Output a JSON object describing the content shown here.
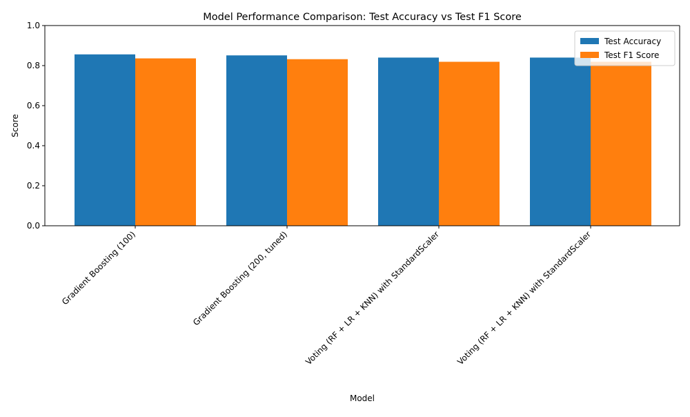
{
  "chart_data": {
    "type": "bar",
    "title": "Model Performance Comparison: Test Accuracy vs Test F1 Score",
    "xlabel": "Model",
    "ylabel": "Score",
    "ylim": [
      0,
      1.0
    ],
    "yticks": [
      "0.0",
      "0.2",
      "0.4",
      "0.6",
      "0.8",
      "1.0"
    ],
    "categories": [
      "Gradient Boosting (100)",
      "Gradient Boosting (200, tuned)",
      "Voting (RF + LR + KNN) with StandardScaler",
      "Voting (RF + LR + KNN) with StandardScaler"
    ],
    "series": [
      {
        "name": "Test Accuracy",
        "color": "#1f77b4",
        "values": [
          0.856,
          0.851,
          0.84,
          0.84
        ]
      },
      {
        "name": "Test F1 Score",
        "color": "#ff7f0e",
        "values": [
          0.836,
          0.832,
          0.819,
          0.819
        ]
      }
    ],
    "grid": false,
    "legend_position": "top-right"
  }
}
